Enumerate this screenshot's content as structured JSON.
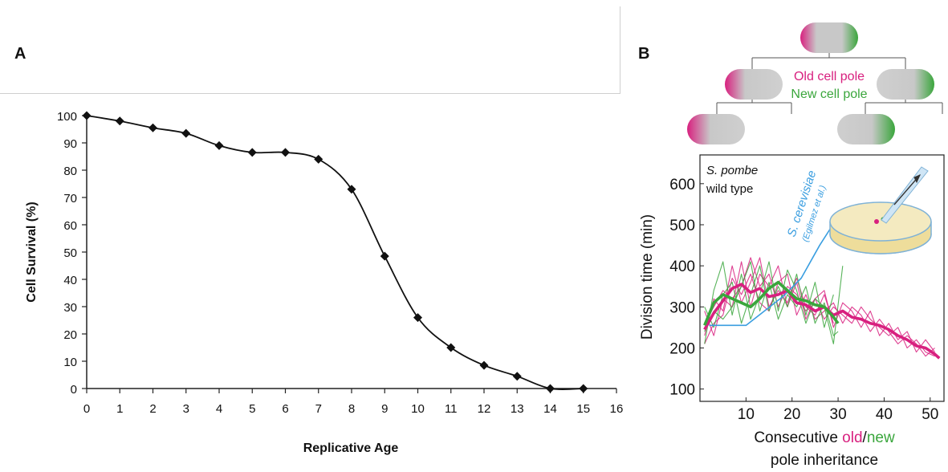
{
  "panels": {
    "a_label": "A",
    "b_label": "B"
  },
  "colors": {
    "old_pole": "#d8207f",
    "new_pole": "#3aa63c",
    "cerevisiae": "#3a9ee0",
    "cell_gray": "#c8c8c8"
  },
  "diagram": {
    "old_pole_label": "Old cell pole",
    "new_pole_label": "New cell pole"
  },
  "chart_data": [
    {
      "type": "line",
      "title": "",
      "xlabel": "Replicative Age",
      "ylabel": "Cell Survival (%)",
      "xlim": [
        0,
        16
      ],
      "ylim": [
        0,
        100
      ],
      "x_ticks": [
        "0",
        "1",
        "2",
        "3",
        "4",
        "5",
        "6",
        "7",
        "8",
        "9",
        "10",
        "11",
        "12",
        "13",
        "14",
        "15",
        "16"
      ],
      "y_ticks": [
        "0",
        "10",
        "20",
        "30",
        "40",
        "50",
        "60",
        "70",
        "80",
        "90",
        "100"
      ],
      "grid": false,
      "series": [
        {
          "x": [
            0,
            1,
            2,
            3,
            4,
            5,
            6,
            7,
            8,
            9,
            10,
            11,
            12,
            13,
            14,
            15
          ],
          "y": [
            100,
            98,
            95.5,
            93.5,
            89,
            86.5,
            86.5,
            84,
            73,
            48.5,
            26,
            15,
            8.5,
            4.5,
            0,
            0
          ]
        }
      ]
    },
    {
      "type": "line",
      "title": "",
      "xlabel_parts": [
        "Consecutive ",
        "old",
        "/",
        "new"
      ],
      "xlabel_line2": "pole inheritance",
      "ylabel": "Division time (min)",
      "xlim": [
        0,
        53
      ],
      "ylim": [
        70,
        670
      ],
      "x_ticks": [
        "10",
        "20",
        "30",
        "40",
        "50"
      ],
      "y_ticks": [
        "100",
        "200",
        "300",
        "400",
        "500",
        "600"
      ],
      "annotations": {
        "species": "S. pombe",
        "strain": "wild type",
        "cerevisiae": "S. cerevisiae",
        "cerevisiae_ref": "(Egilmez et al.)"
      },
      "series": [
        {
          "role": "old-mean",
          "x": [
            1,
            3,
            5,
            7,
            9,
            11,
            13,
            15,
            17,
            19,
            21,
            23,
            25,
            27,
            29,
            31,
            33,
            35,
            37,
            39,
            41,
            43,
            45,
            47,
            49,
            51,
            52
          ],
          "y": [
            245,
            285,
            315,
            345,
            355,
            335,
            345,
            325,
            330,
            340,
            310,
            305,
            290,
            300,
            280,
            290,
            275,
            270,
            260,
            255,
            245,
            230,
            220,
            205,
            200,
            185,
            175
          ]
        },
        {
          "role": "old-trace",
          "x": [
            1,
            3,
            5,
            7,
            9,
            11,
            13,
            15,
            17,
            19,
            21,
            23,
            25,
            27,
            29,
            31,
            33,
            35,
            37,
            39,
            41,
            43,
            45,
            47,
            49,
            51
          ],
          "y": [
            290,
            230,
            320,
            300,
            410,
            300,
            380,
            350,
            400,
            300,
            360,
            270,
            320,
            340,
            250,
            310,
            290,
            250,
            290,
            230,
            260,
            220,
            240,
            190,
            220,
            190
          ]
        },
        {
          "role": "old-trace",
          "x": [
            1,
            3,
            5,
            7,
            9,
            11,
            13,
            15,
            17,
            19,
            21,
            23,
            25,
            27,
            29,
            31,
            33,
            35,
            37,
            39,
            41,
            43,
            45,
            47,
            49,
            51
          ],
          "y": [
            210,
            260,
            280,
            370,
            330,
            380,
            310,
            290,
            360,
            380,
            280,
            330,
            270,
            290,
            310,
            260,
            300,
            280,
            240,
            270,
            240,
            210,
            230,
            210,
            180,
            200
          ]
        },
        {
          "role": "old-trace",
          "x": [
            1,
            3,
            5,
            7,
            9,
            11,
            13,
            15,
            17,
            19,
            21,
            23,
            25,
            27,
            29,
            31,
            33,
            35,
            37,
            39,
            41,
            43,
            45,
            47,
            49,
            51
          ],
          "y": [
            260,
            300,
            340,
            320,
            350,
            420,
            350,
            380,
            300,
            350,
            330,
            290,
            320,
            270,
            300,
            280,
            260,
            300,
            270,
            250,
            230,
            250,
            200,
            220,
            190,
            180
          ]
        },
        {
          "role": "old-trace",
          "x": [
            1,
            3,
            5,
            7,
            9,
            11,
            13,
            15,
            17,
            19,
            21,
            23,
            25,
            27,
            29
          ],
          "y": [
            230,
            320,
            290,
            400,
            310,
            360,
            420,
            300,
            340,
            310,
            370,
            300,
            280,
            330,
            260
          ]
        },
        {
          "role": "new-mean",
          "x": [
            1,
            3,
            5,
            7,
            9,
            11,
            13,
            15,
            17,
            19,
            21,
            23,
            25,
            27,
            29,
            30
          ],
          "y": [
            255,
            310,
            330,
            320,
            310,
            300,
            320,
            345,
            360,
            340,
            320,
            315,
            305,
            300,
            275,
            260
          ]
        },
        {
          "role": "new-trace",
          "x": [
            1,
            3,
            5,
            7,
            9,
            11,
            13,
            15,
            17,
            19,
            21,
            23,
            25,
            27,
            29,
            31
          ],
          "y": [
            210,
            340,
            410,
            280,
            380,
            270,
            330,
            410,
            290,
            390,
            340,
            260,
            320,
            300,
            210,
            400
          ]
        },
        {
          "role": "new-trace",
          "x": [
            1,
            3,
            5,
            7,
            9,
            11,
            13,
            15,
            17,
            19,
            21,
            23,
            25,
            27,
            29
          ],
          "y": [
            300,
            250,
            330,
            360,
            260,
            330,
            400,
            290,
            350,
            300,
            380,
            280,
            360,
            250,
            330
          ]
        },
        {
          "role": "new-trace",
          "x": [
            1,
            3,
            5,
            7,
            9,
            11,
            13,
            15,
            17,
            19,
            21,
            23,
            25,
            27,
            29,
            30
          ],
          "y": [
            240,
            290,
            270,
            300,
            350,
            410,
            290,
            360,
            270,
            330,
            300,
            350,
            260,
            310,
            230,
            240
          ]
        },
        {
          "role": "cerevisiae",
          "x": [
            2,
            10,
            18,
            22,
            26,
            30
          ],
          "y": [
            255,
            255,
            325,
            370,
            450,
            520
          ]
        }
      ]
    }
  ]
}
